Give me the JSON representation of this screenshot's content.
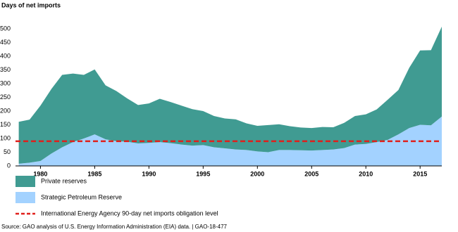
{
  "chart_data": {
    "type": "stacked-area",
    "y_label": "Days of net imports",
    "x": [
      1978,
      1979,
      1980,
      1981,
      1982,
      1983,
      1984,
      1985,
      1986,
      1987,
      1988,
      1989,
      1990,
      1991,
      1992,
      1993,
      1994,
      1995,
      1996,
      1997,
      1998,
      1999,
      2000,
      2001,
      2002,
      2003,
      2004,
      2005,
      2006,
      2007,
      2008,
      2009,
      2010,
      2011,
      2012,
      2013,
      2014,
      2015,
      2016,
      2017
    ],
    "series": [
      {
        "name": "Strategic Petroleum Reserve",
        "color": "#a3d2ff",
        "values": [
          8,
          12,
          18,
          45,
          68,
          87,
          100,
          115,
          97,
          90,
          88,
          82,
          84,
          87,
          83,
          78,
          74,
          76,
          68,
          64,
          60,
          58,
          53,
          50,
          58,
          58,
          57,
          56,
          58,
          60,
          65,
          78,
          80,
          87,
          95,
          115,
          138,
          150,
          148,
          180
        ]
      },
      {
        "name": "Private reserves",
        "color": "#409b92",
        "values": [
          153,
          157,
          202,
          235,
          264,
          250,
          232,
          237,
          197,
          183,
          158,
          140,
          144,
          158,
          150,
          142,
          133,
          124,
          114,
          109,
          110,
          97,
          93,
          99,
          94,
          87,
          83,
          82,
          84,
          81,
          92,
          104,
          108,
          119,
          146,
          162,
          220,
          271,
          274,
          328
        ]
      }
    ],
    "legend_order": [
      1,
      0
    ],
    "reference_line": {
      "value": 90,
      "label": "International Energy Agency 90-day net imports obligation level",
      "color": "#e0201c"
    },
    "xlim": [
      1977.7,
      2017
    ],
    "xticks": [
      1980,
      1985,
      1990,
      1995,
      2000,
      2005,
      2010,
      2015
    ],
    "ylim": [
      0,
      550
    ],
    "yticks": [
      0,
      50,
      100,
      150,
      200,
      250,
      300,
      350,
      400,
      450,
      500
    ],
    "source": "Source: GAO analysis of U.S. Energy Information Administration (EIA) data.  |  GAO-18-477"
  }
}
